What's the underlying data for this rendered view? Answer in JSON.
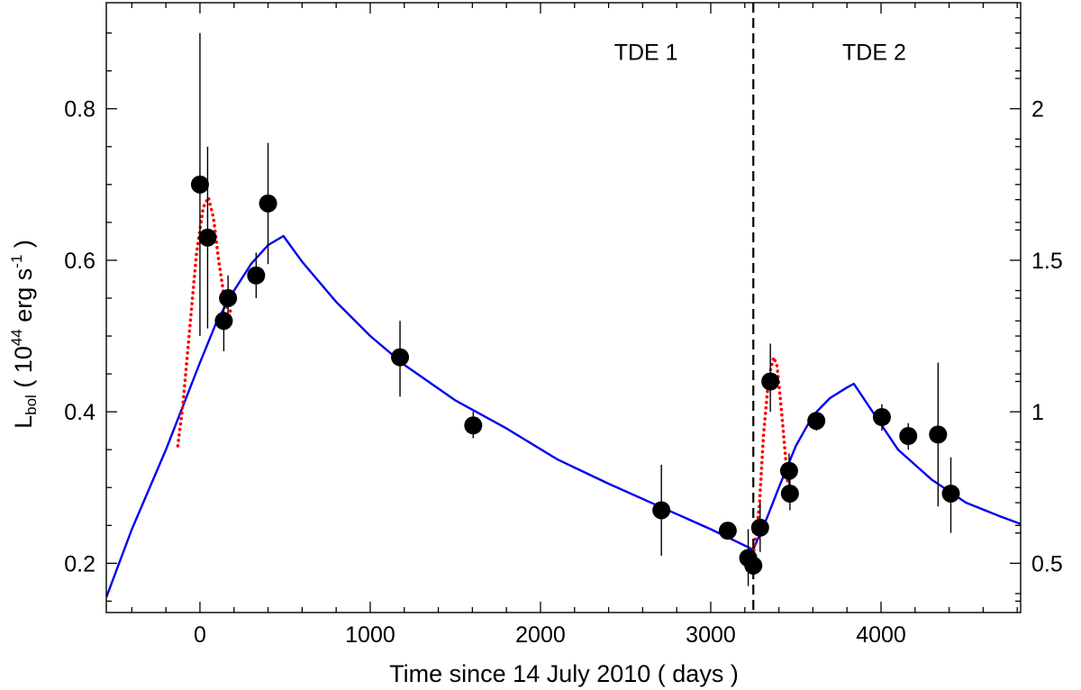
{
  "chart_data": {
    "type": "scatter",
    "xlabel": "Time since 14 July 2010 ( days )",
    "ylabel": {
      "main": "L",
      "sub": "bol",
      "open": " ( 10",
      "sup_exp": "44",
      "units": " erg s",
      "sup_inv": "-1",
      "close": " )"
    },
    "xlim": [
      -550,
      4820
    ],
    "ylim": [
      0.135,
      0.94
    ],
    "x_ticks": [
      0,
      1000,
      2000,
      3000,
      4000
    ],
    "x_tick_labels": [
      "0",
      "1000",
      "2000",
      "3000",
      "4000"
    ],
    "y_ticks": [
      0.2,
      0.4,
      0.6,
      0.8
    ],
    "y_tick_labels": [
      "0.2",
      "0.4",
      "0.6",
      "0.8"
    ],
    "y2_ticks": [
      0.2,
      0.4,
      0.6,
      0.8
    ],
    "y2_tick_labels": [
      "0.5",
      "1",
      "1.5",
      "2"
    ],
    "annotations": [
      {
        "text": "TDE 1",
        "x": 2620,
        "y": 0.875
      },
      {
        "text": "TDE 2",
        "x": 3960,
        "y": 0.875
      }
    ],
    "vline": {
      "x": 3250,
      "style": "dashed",
      "color": "#000000"
    },
    "colors": {
      "model": "#0000ee",
      "flare": "#ff0000",
      "points": "#000000"
    },
    "points": [
      {
        "x": 0,
        "y": 0.7,
        "yerr": [
          0.5,
          0.9
        ]
      },
      {
        "x": 45,
        "y": 0.63,
        "yerr": [
          0.51,
          0.75
        ]
      },
      {
        "x": 140,
        "y": 0.52,
        "yerr": [
          0.48,
          0.56
        ]
      },
      {
        "x": 165,
        "y": 0.55,
        "yerr": [
          0.52,
          0.58
        ]
      },
      {
        "x": 330,
        "y": 0.58,
        "yerr": [
          0.55,
          0.61
        ]
      },
      {
        "x": 400,
        "y": 0.675,
        "yerr": [
          0.595,
          0.755
        ]
      },
      {
        "x": 1175,
        "y": 0.472,
        "yerr": [
          0.42,
          0.52
        ]
      },
      {
        "x": 1605,
        "y": 0.382,
        "yerr": [
          0.365,
          0.4
        ]
      },
      {
        "x": 2710,
        "y": 0.27,
        "yerr": [
          0.21,
          0.33
        ]
      },
      {
        "x": 3100,
        "y": 0.243,
        "yerr": [
          0.235,
          0.251
        ]
      },
      {
        "x": 3220,
        "y": 0.207,
        "yerr": [
          0.17,
          0.245
        ]
      },
      {
        "x": 3250,
        "y": 0.197,
        "yerr": [
          0.18,
          0.215
        ]
      },
      {
        "x": 3290,
        "y": 0.247,
        "yerr": [
          0.215,
          0.28
        ]
      },
      {
        "x": 3350,
        "y": 0.44,
        "yerr": [
          0.4,
          0.49
        ]
      },
      {
        "x": 3460,
        "y": 0.322,
        "yerr": [
          0.3,
          0.345
        ]
      },
      {
        "x": 3465,
        "y": 0.292,
        "yerr": [
          0.27,
          0.315
        ]
      },
      {
        "x": 3620,
        "y": 0.388,
        "yerr": [
          0.375,
          0.4
        ]
      },
      {
        "x": 4005,
        "y": 0.393,
        "yerr": [
          0.375,
          0.41
        ]
      },
      {
        "x": 4160,
        "y": 0.368,
        "yerr": [
          0.35,
          0.385
        ]
      },
      {
        "x": 4335,
        "y": 0.37,
        "yerr": [
          0.275,
          0.465
        ]
      },
      {
        "x": 4410,
        "y": 0.292,
        "yerr": [
          0.24,
          0.34
        ]
      }
    ],
    "series": [
      {
        "name": "model (blue)",
        "style": "solid",
        "x": [
          -550,
          -400,
          -200,
          0,
          100,
          200,
          300,
          400,
          490,
          600,
          800,
          1000,
          1200,
          1500,
          1800,
          2100,
          2400,
          2700,
          3000,
          3250,
          3330,
          3400,
          3500,
          3600,
          3700,
          3800,
          3840,
          3950,
          4100,
          4300,
          4500,
          4700,
          4820
        ],
        "y": [
          0.155,
          0.245,
          0.35,
          0.465,
          0.52,
          0.56,
          0.595,
          0.62,
          0.632,
          0.598,
          0.545,
          0.5,
          0.462,
          0.415,
          0.378,
          0.337,
          0.305,
          0.275,
          0.245,
          0.218,
          0.26,
          0.3,
          0.355,
          0.395,
          0.418,
          0.432,
          0.437,
          0.4,
          0.35,
          0.31,
          0.28,
          0.262,
          0.252
        ]
      },
      {
        "name": "flare 1 (red dotted)",
        "style": "dotted",
        "x": [
          -130,
          -100,
          -60,
          -20,
          20,
          50,
          80,
          110,
          150,
          190
        ],
        "y": [
          0.355,
          0.41,
          0.51,
          0.61,
          0.67,
          0.683,
          0.655,
          0.6,
          0.54,
          0.53
        ]
      },
      {
        "name": "flare 2 (red dotted)",
        "style": "dotted",
        "x": [
          3250,
          3285,
          3310,
          3340,
          3370,
          3390,
          3420,
          3450,
          3470
        ],
        "y": [
          0.21,
          0.275,
          0.37,
          0.445,
          0.472,
          0.46,
          0.39,
          0.31,
          0.29
        ]
      }
    ]
  }
}
